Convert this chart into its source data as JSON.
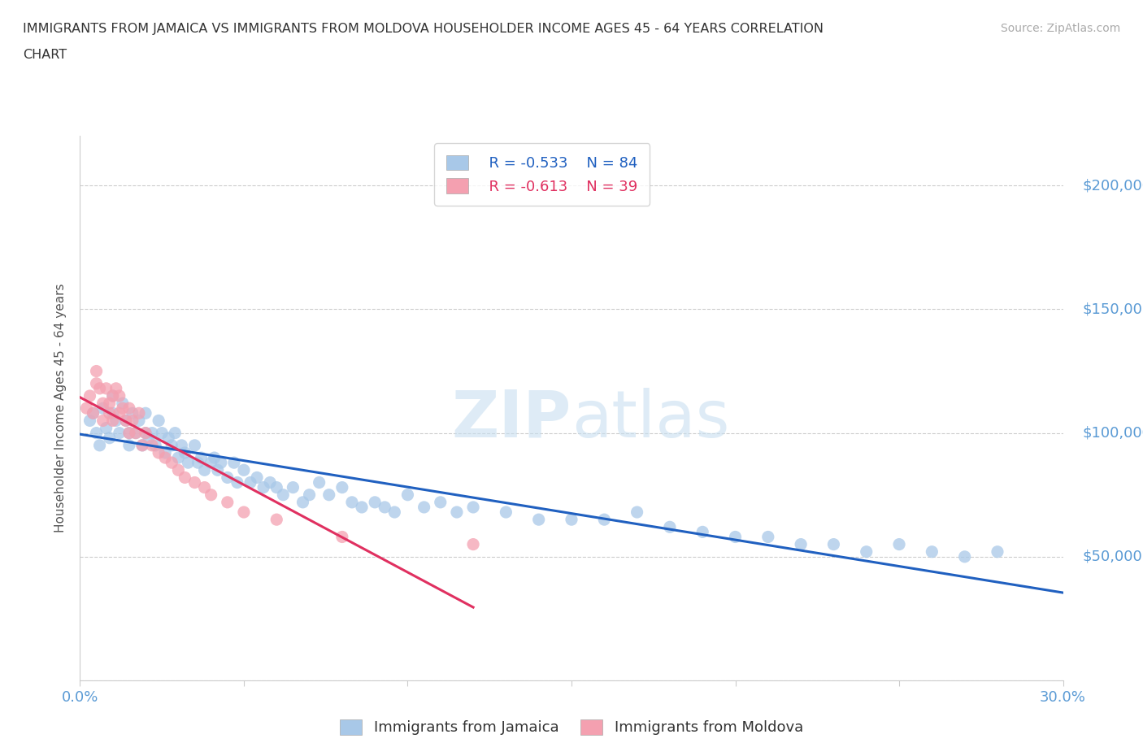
{
  "title_line1": "IMMIGRANTS FROM JAMAICA VS IMMIGRANTS FROM MOLDOVA HOUSEHOLDER INCOME AGES 45 - 64 YEARS CORRELATION",
  "title_line2": "CHART",
  "source_text": "Source: ZipAtlas.com",
  "ylabel": "Householder Income Ages 45 - 64 years",
  "xlim": [
    0.0,
    0.3
  ],
  "ylim": [
    0,
    220000
  ],
  "yticks": [
    0,
    50000,
    100000,
    150000,
    200000
  ],
  "ytick_labels": [
    "",
    "$50,000",
    "$100,000",
    "$150,000",
    "$200,000"
  ],
  "xticks": [
    0.0,
    0.05,
    0.1,
    0.15,
    0.2,
    0.25,
    0.3
  ],
  "jamaica_color": "#a8c8e8",
  "moldova_color": "#f4a0b0",
  "trendline_jamaica_color": "#2060c0",
  "trendline_moldova_color": "#e03060",
  "watermark": "ZIPatlas",
  "legend_r_jamaica": "R = -0.533",
  "legend_n_jamaica": "N = 84",
  "legend_r_moldova": "R = -0.613",
  "legend_n_moldova": "N = 39",
  "jamaica_x": [
    0.003,
    0.004,
    0.005,
    0.006,
    0.007,
    0.008,
    0.009,
    0.01,
    0.01,
    0.011,
    0.012,
    0.013,
    0.014,
    0.015,
    0.015,
    0.016,
    0.017,
    0.018,
    0.019,
    0.02,
    0.02,
    0.021,
    0.022,
    0.023,
    0.024,
    0.025,
    0.026,
    0.027,
    0.028,
    0.029,
    0.03,
    0.031,
    0.032,
    0.033,
    0.035,
    0.036,
    0.037,
    0.038,
    0.04,
    0.041,
    0.042,
    0.043,
    0.045,
    0.047,
    0.048,
    0.05,
    0.052,
    0.054,
    0.056,
    0.058,
    0.06,
    0.062,
    0.065,
    0.068,
    0.07,
    0.073,
    0.076,
    0.08,
    0.083,
    0.086,
    0.09,
    0.093,
    0.096,
    0.1,
    0.105,
    0.11,
    0.115,
    0.12,
    0.13,
    0.14,
    0.15,
    0.16,
    0.17,
    0.18,
    0.19,
    0.2,
    0.21,
    0.22,
    0.23,
    0.24,
    0.25,
    0.26,
    0.27,
    0.28
  ],
  "jamaica_y": [
    105000,
    108000,
    100000,
    95000,
    110000,
    102000,
    98000,
    115000,
    108000,
    105000,
    100000,
    112000,
    105000,
    100000,
    95000,
    108000,
    100000,
    105000,
    95000,
    100000,
    108000,
    98000,
    100000,
    95000,
    105000,
    100000,
    92000,
    98000,
    95000,
    100000,
    90000,
    95000,
    92000,
    88000,
    95000,
    88000,
    90000,
    85000,
    88000,
    90000,
    85000,
    88000,
    82000,
    88000,
    80000,
    85000,
    80000,
    82000,
    78000,
    80000,
    78000,
    75000,
    78000,
    72000,
    75000,
    80000,
    75000,
    78000,
    72000,
    70000,
    72000,
    70000,
    68000,
    75000,
    70000,
    72000,
    68000,
    70000,
    68000,
    65000,
    65000,
    65000,
    68000,
    62000,
    60000,
    58000,
    58000,
    55000,
    55000,
    52000,
    55000,
    52000,
    50000,
    52000
  ],
  "moldova_x": [
    0.002,
    0.003,
    0.004,
    0.005,
    0.005,
    0.006,
    0.007,
    0.007,
    0.008,
    0.009,
    0.009,
    0.01,
    0.01,
    0.011,
    0.012,
    0.012,
    0.013,
    0.014,
    0.015,
    0.015,
    0.016,
    0.017,
    0.018,
    0.019,
    0.02,
    0.022,
    0.024,
    0.026,
    0.028,
    0.03,
    0.032,
    0.035,
    0.038,
    0.04,
    0.045,
    0.05,
    0.06,
    0.08,
    0.12
  ],
  "moldova_y": [
    110000,
    115000,
    108000,
    120000,
    125000,
    118000,
    112000,
    105000,
    118000,
    112000,
    108000,
    115000,
    105000,
    118000,
    108000,
    115000,
    110000,
    105000,
    100000,
    110000,
    105000,
    100000,
    108000,
    95000,
    100000,
    95000,
    92000,
    90000,
    88000,
    85000,
    82000,
    80000,
    78000,
    75000,
    72000,
    68000,
    65000,
    58000,
    55000
  ]
}
